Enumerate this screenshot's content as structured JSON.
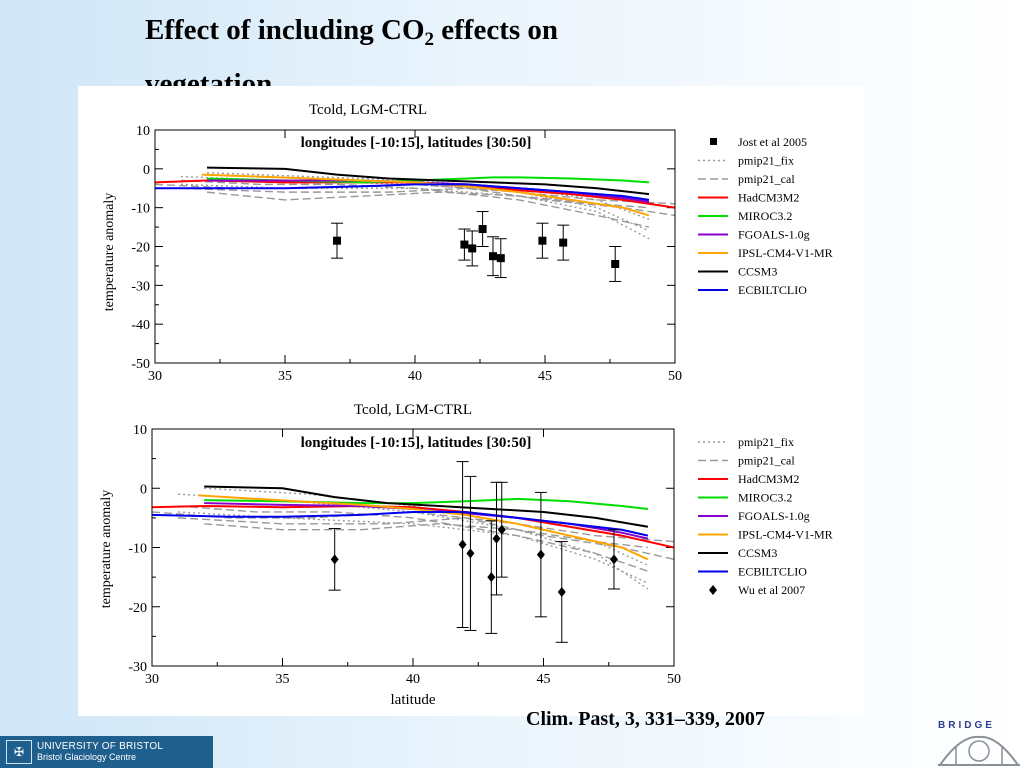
{
  "slide": {
    "title_main": "Effect of including CO",
    "title_sub": "2",
    "title_rest": " effects on",
    "title_line2": "vegetation…",
    "citation": "Clim. Past, 3, 331–339, 2007",
    "logo_left_line1": "UNIVERSITY OF BRISTOL",
    "logo_left_line2": "Bristol Glaciology Centre",
    "logo_right_text": "BRIDGE"
  },
  "colors": {
    "HadCM3M2": "#ff0000",
    "MIROC3.2": "#00dd00",
    "FGOALS-1.0g": "#8800cc",
    "IPSL-CM4-V1-MR": "#ffa500",
    "CCSM3": "#000000",
    "ECBILTCLIO": "#0000ee",
    "pmip": "#999999"
  },
  "chart_data": [
    {
      "type": "line",
      "title": "Tcold, LGM-CTRL",
      "annotation": "longitudes [-10:15], latitudes [30:50]",
      "xlabel": "",
      "ylabel": "temperature anomaly",
      "xlim": [
        30,
        50
      ],
      "ylim": [
        -50,
        10
      ],
      "xticks": [
        30,
        35,
        40,
        45,
        50
      ],
      "yticks": [
        10,
        0,
        -10,
        -20,
        -30,
        -40,
        -50
      ],
      "legend": [
        "Jost et al 2005",
        "pmip21_fix",
        "pmip21_cal",
        "HadCM3M2",
        "MIROC3.2",
        "FGOALS-1.0g",
        "IPSL-CM4-V1-MR",
        "CCSM3",
        "ECBILTCLIO"
      ],
      "legend_position": "right",
      "series": [
        {
          "name": "pmip21_fix",
          "style": "dotted",
          "lines": [
            {
              "x": [
                31,
                35,
                40,
                44,
                47,
                49
              ],
              "y": [
                -2,
                -3,
                -4,
                -6,
                -10,
                -16
              ]
            },
            {
              "x": [
                31,
                35,
                40,
                44,
                47,
                49
              ],
              "y": [
                -4,
                -5,
                -5,
                -7,
                -11,
                -18
              ]
            },
            {
              "x": [
                32,
                36,
                40,
                44,
                47,
                49
              ],
              "y": [
                -1,
                -2,
                -3,
                -5,
                -8,
                -13
              ]
            }
          ]
        },
        {
          "name": "pmip21_cal",
          "style": "dashed",
          "lines": [
            {
              "x": [
                30,
                33,
                36,
                40,
                44,
                47,
                50
              ],
              "y": [
                -4,
                -5,
                -5,
                -4,
                -6,
                -8,
                -9
              ]
            },
            {
              "x": [
                31,
                34,
                37,
                40,
                44,
                47,
                49
              ],
              "y": [
                -3,
                -4,
                -4,
                -5,
                -8,
                -12,
                -15
              ]
            },
            {
              "x": [
                32,
                35,
                38,
                41,
                44,
                47,
                49
              ],
              "y": [
                -6,
                -8,
                -7,
                -6,
                -7,
                -9,
                -10
              ]
            },
            {
              "x": [
                31,
                35,
                39,
                42,
                45,
                48,
                50
              ],
              "y": [
                -5,
                -6,
                -6,
                -5,
                -8,
                -10,
                -12
              ]
            }
          ]
        },
        {
          "name": "HadCM3M2",
          "x": [
            30,
            32,
            35,
            38,
            40,
            42,
            44,
            46,
            48,
            50
          ],
          "y": [
            -3.5,
            -3,
            -3.5,
            -3.5,
            -3.5,
            -4.5,
            -5.5,
            -6.5,
            -8,
            -10
          ]
        },
        {
          "name": "MIROC3.2",
          "x": [
            32,
            35,
            38,
            40,
            42,
            43,
            44,
            46,
            48,
            49
          ],
          "y": [
            -2.5,
            -3,
            -3.5,
            -3,
            -2.5,
            -2.2,
            -2.2,
            -2.5,
            -3,
            -3.5
          ]
        },
        {
          "name": "FGOALS-1.0g",
          "x": [
            32,
            35,
            38,
            40,
            42,
            44,
            46,
            48,
            49
          ],
          "y": [
            -3,
            -3,
            -3,
            -3.5,
            -4,
            -5,
            -6,
            -7.5,
            -8.5
          ]
        },
        {
          "name": "IPSL-CM4-V1-MR",
          "x": [
            31.8,
            34,
            36,
            38,
            40,
            42,
            44,
            46,
            48,
            49
          ],
          "y": [
            -1.5,
            -2,
            -2.5,
            -3,
            -3.5,
            -4.5,
            -6,
            -8,
            -10,
            -12
          ]
        },
        {
          "name": "CCSM3",
          "x": [
            32,
            35,
            37,
            39,
            41,
            43,
            45,
            47,
            49
          ],
          "y": [
            0.3,
            0,
            -1.5,
            -2.5,
            -3,
            -3.5,
            -4,
            -5,
            -6.5
          ]
        },
        {
          "name": "ECBILTCLIO",
          "x": [
            30,
            33,
            35,
            38,
            40,
            42,
            44,
            46,
            48,
            49
          ],
          "y": [
            -5,
            -5,
            -5,
            -4.5,
            -4,
            -4,
            -5,
            -6,
            -7,
            -8
          ]
        },
        {
          "name": "Jost et al 2005",
          "type": "points",
          "marker": "square",
          "x": [
            37.0,
            41.9,
            42.2,
            42.6,
            43.0,
            43.3,
            44.9,
            45.7,
            47.7
          ],
          "y": [
            -18.5,
            -19.5,
            -20.5,
            -15.5,
            -22.5,
            -23,
            -18.5,
            -19,
            -24.5
          ],
          "err": [
            4.5,
            4,
            4.5,
            4.5,
            5,
            5,
            4.5,
            4.5,
            4.5
          ]
        }
      ]
    },
    {
      "type": "line",
      "title": "Tcold, LGM-CTRL",
      "annotation": "longitudes [-10:15], latitudes [30:50]",
      "xlabel": "latitude",
      "ylabel": "temperature anomaly",
      "xlim": [
        30,
        50
      ],
      "ylim": [
        -30,
        10
      ],
      "xticks": [
        30,
        35,
        40,
        45,
        50
      ],
      "yticks": [
        10,
        0,
        -10,
        -20,
        -30
      ],
      "legend": [
        "pmip21_fix",
        "pmip21_cal",
        "HadCM3M2",
        "MIROC3.2",
        "FGOALS-1.0g",
        "IPSL-CM4-V1-MR",
        "CCSM3",
        "ECBILTCLIO",
        "Wu et al 2007"
      ],
      "legend_position": "right",
      "series": [
        {
          "name": "pmip21_fix",
          "style": "dotted",
          "lines": [
            {
              "x": [
                31,
                35,
                40,
                44,
                47,
                49
              ],
              "y": [
                -1,
                -2,
                -4,
                -7,
                -11,
                -17
              ]
            },
            {
              "x": [
                31,
                35,
                40,
                44,
                47,
                49
              ],
              "y": [
                -4,
                -5,
                -6,
                -8,
                -12,
                -16
              ]
            },
            {
              "x": [
                32,
                36,
                40,
                44,
                47,
                49
              ],
              "y": [
                0,
                -1,
                -3,
                -6,
                -9,
                -13
              ]
            }
          ]
        },
        {
          "name": "pmip21_cal",
          "style": "dashed",
          "lines": [
            {
              "x": [
                30,
                33,
                36,
                40,
                44,
                47,
                50
              ],
              "y": [
                -4,
                -5,
                -5,
                -4,
                -6,
                -8,
                -9
              ]
            },
            {
              "x": [
                31,
                34,
                37,
                40,
                44,
                47,
                49
              ],
              "y": [
                -3,
                -4,
                -4,
                -5,
                -8,
                -11,
                -14
              ]
            },
            {
              "x": [
                32,
                35,
                38,
                41,
                44,
                47,
                49
              ],
              "y": [
                -6,
                -7,
                -7,
                -6,
                -7,
                -9,
                -10
              ]
            },
            {
              "x": [
                31,
                35,
                39,
                42,
                45,
                48,
                50
              ],
              "y": [
                -5,
                -6,
                -6,
                -5,
                -8,
                -10,
                -12
              ]
            }
          ]
        },
        {
          "name": "HadCM3M2",
          "x": [
            30,
            32,
            35,
            38,
            40,
            42,
            44,
            46,
            48,
            50
          ],
          "y": [
            -3.2,
            -3,
            -3.2,
            -3,
            -3.2,
            -4,
            -5,
            -6.5,
            -8,
            -10
          ]
        },
        {
          "name": "MIROC3.2",
          "x": [
            32,
            35,
            38,
            40,
            42,
            43,
            44,
            46,
            48,
            49
          ],
          "y": [
            -2,
            -2.2,
            -2.5,
            -2.5,
            -2.2,
            -2,
            -1.8,
            -2.2,
            -3,
            -3.5
          ]
        },
        {
          "name": "FGOALS-1.0g",
          "x": [
            32,
            35,
            38,
            40,
            42,
            44,
            46,
            48,
            49
          ],
          "y": [
            -2.5,
            -2.8,
            -3,
            -3.5,
            -4.2,
            -5,
            -6,
            -7.5,
            -8.5
          ]
        },
        {
          "name": "IPSL-CM4-V1-MR",
          "x": [
            31.8,
            34,
            36,
            38,
            40,
            42,
            44,
            46,
            48,
            49
          ],
          "y": [
            -1.2,
            -1.8,
            -2.3,
            -2.8,
            -3.5,
            -4.5,
            -6,
            -8,
            -10,
            -12
          ]
        },
        {
          "name": "CCSM3",
          "x": [
            32,
            35,
            37,
            39,
            41,
            43,
            45,
            47,
            49
          ],
          "y": [
            0.3,
            0,
            -1.5,
            -2.5,
            -3,
            -3.5,
            -4,
            -5,
            -6.5
          ]
        },
        {
          "name": "ECBILTCLIO",
          "x": [
            30,
            33,
            35,
            38,
            40,
            42,
            44,
            46,
            48,
            49
          ],
          "y": [
            -4.5,
            -4.8,
            -4.8,
            -4.5,
            -4,
            -4,
            -5,
            -6,
            -7,
            -8
          ]
        },
        {
          "name": "Wu et al 2007",
          "type": "points",
          "marker": "diamond",
          "x": [
            37.0,
            41.9,
            42.2,
            43.0,
            43.2,
            43.4,
            44.9,
            45.7,
            47.7
          ],
          "y": [
            -12,
            -9.5,
            -11,
            -15,
            -8.5,
            -7,
            -11.2,
            -17.5,
            -12
          ],
          "err": [
            5.2,
            14,
            13,
            9.5,
            9.5,
            8,
            10.5,
            8.5,
            5
          ]
        }
      ]
    }
  ]
}
